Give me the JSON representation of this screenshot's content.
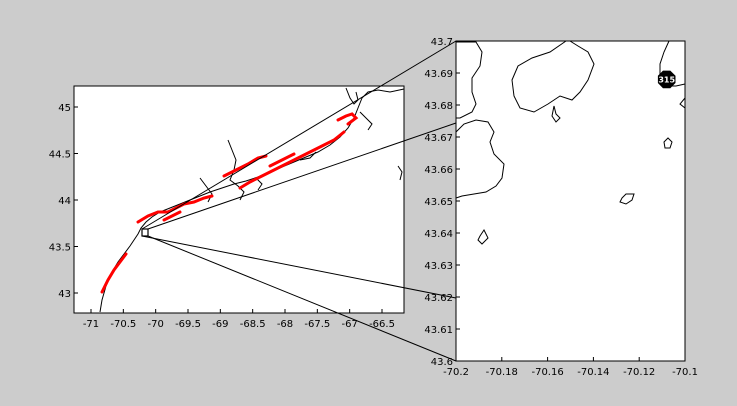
{
  "figure": {
    "background": "#cccccc",
    "coast_color": "#000000",
    "marker_color": "#ff0000"
  },
  "overview_map": {
    "x_ticks": [
      "-71",
      "-70.5",
      "-70",
      "-69.5",
      "-69",
      "-68.5",
      "-68",
      "-67.5",
      "-67",
      "-66.5"
    ],
    "y_ticks": [
      "45",
      "44.5",
      "44",
      "43.5",
      "43"
    ],
    "xlim": [
      -71.2,
      -66.2
    ],
    "ylim": [
      42.75,
      45.2
    ],
    "zoom_box": {
      "lon": [
        -70.2,
        -70.1
      ],
      "lat": [
        43.6,
        43.7
      ]
    }
  },
  "detail_map": {
    "x_ticks": [
      "-70.2",
      "-70.18",
      "-70.16",
      "-70.14",
      "-70.12",
      "-70.1"
    ],
    "y_ticks": [
      "43.7",
      "43.69",
      "43.68",
      "43.67",
      "43.66",
      "43.65",
      "43.64",
      "43.63",
      "43.62",
      "43.61",
      "43.6"
    ],
    "xlim": [
      -70.2,
      -70.1
    ],
    "ylim": [
      43.6,
      43.7
    ],
    "marker": {
      "label": "315",
      "lon": -70.108,
      "lat": 43.688
    }
  }
}
